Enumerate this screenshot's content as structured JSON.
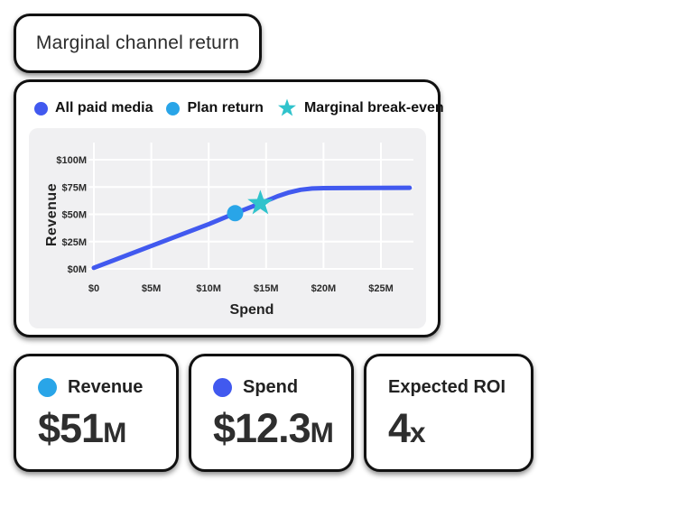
{
  "title_card": {
    "title": "Marginal channel return"
  },
  "legend": [
    {
      "label": "All paid media",
      "marker": "dot",
      "color": "#4159EF"
    },
    {
      "label": "Plan return",
      "marker": "dot",
      "color": "#29A5E8"
    },
    {
      "label": "Marginal break-even",
      "marker": "star",
      "color": "#30C3CC"
    }
  ],
  "chart_data": {
    "type": "line",
    "title": "Marginal channel return",
    "xlabel": "Spend",
    "ylabel": "Revenue",
    "x_ticks": [
      "$0",
      "$5M",
      "$10M",
      "$15M",
      "$20M",
      "$25M"
    ],
    "x_tick_values": [
      0,
      5,
      10,
      15,
      20,
      25
    ],
    "y_ticks": [
      "$0M",
      "$25M",
      "$50M",
      "$75M",
      "$100M"
    ],
    "y_tick_values": [
      0,
      25,
      50,
      75,
      100
    ],
    "xlim": [
      0,
      27.5
    ],
    "ylim": [
      0,
      100
    ],
    "grid": true,
    "legend_position": "top",
    "series": [
      {
        "name": "All paid media",
        "color": "#4159EF",
        "points": [
          [
            0,
            1
          ],
          [
            5,
            21
          ],
          [
            10,
            41
          ],
          [
            12.3,
            51
          ],
          [
            14.5,
            60
          ],
          [
            16,
            66.5
          ],
          [
            17,
            70
          ],
          [
            18,
            72.5
          ],
          [
            19,
            73.6
          ],
          [
            20,
            74
          ],
          [
            27.5,
            74.3
          ]
        ]
      }
    ],
    "markers": [
      {
        "name": "Plan return",
        "type": "dot",
        "color": "#29A5E8",
        "x": 12.3,
        "y": 51
      },
      {
        "name": "Marginal break-even",
        "type": "star",
        "color": "#30C3CC",
        "x": 14.5,
        "y": 60
      }
    ]
  },
  "stat_cards": [
    {
      "label": "Revenue",
      "dot_color": "#29A5E8",
      "value": "$51",
      "suffix": "M"
    },
    {
      "label": "Spend",
      "dot_color": "#4159EF",
      "value": "$12.3",
      "suffix": "M"
    },
    {
      "label": "Expected ROI",
      "dot_color": null,
      "value": "4",
      "suffix": "x"
    }
  ],
  "colors": {
    "line_blue": "#4159EF",
    "plan_return_blue": "#29A5E8",
    "breakeven_teal": "#30C3CC",
    "panel_gray": "#f0f0f2",
    "gridline": "#ffffff",
    "text_dark": "#2b2b2b"
  }
}
